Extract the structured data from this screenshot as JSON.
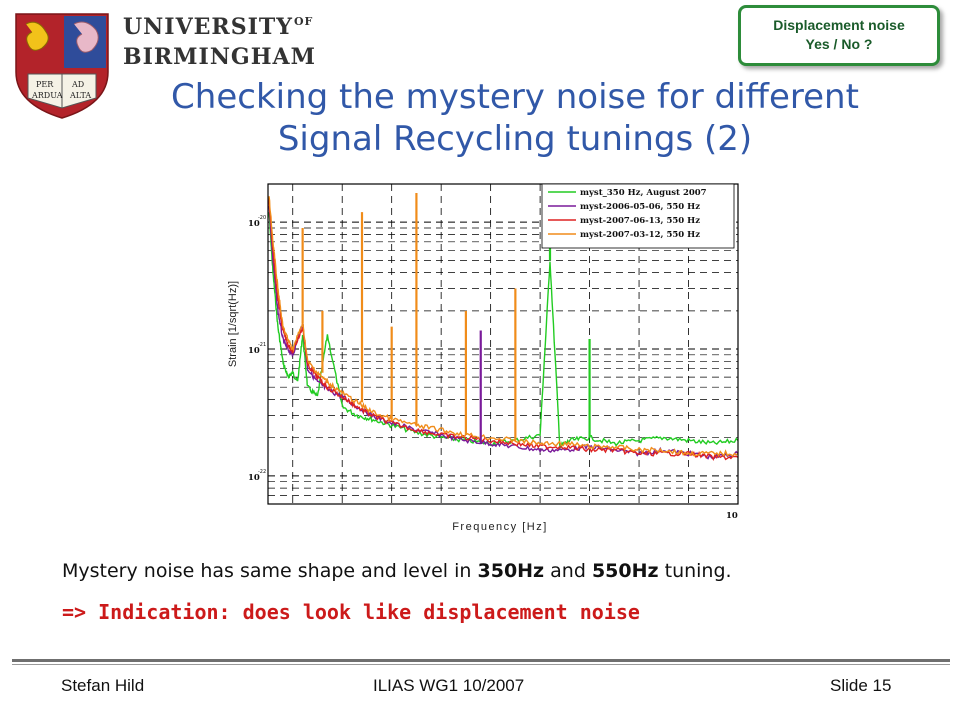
{
  "header": {
    "university_line1": "UNIVERSITY",
    "university_of": "OF",
    "university_line2": "BIRMINGHAM",
    "logo_text": [
      "PER",
      "AD",
      "ARDUA",
      "ALTA"
    ]
  },
  "badge": {
    "line1": "Displacement noise",
    "line2": "Yes / No ?"
  },
  "title": {
    "line1": "Checking the mystery noise for different",
    "line2": "Signal Recycling tunings (2)"
  },
  "body": {
    "statement_pre": "Mystery noise has same shape and level in ",
    "statement_b1": "350Hz",
    "statement_mid": " and ",
    "statement_b2": "550Hz",
    "statement_post": " tuning.",
    "indication": "=> Indication: does look like displacement noise"
  },
  "footer": {
    "left": "Stefan Hild",
    "center": "ILIAS WG1 10/2007",
    "right": "Slide 15"
  },
  "colors": {
    "title": "#3158a8",
    "indication": "#cc1a1a",
    "badge_border": "#2d8c3a"
  },
  "chart_data": {
    "type": "line",
    "title": "",
    "xlabel": "Frequency [Hz]",
    "ylabel": "Strain [1/sqrt(Hz)]",
    "x_scale": "linear",
    "y_scale": "log",
    "xlim": [
      50,
      1000
    ],
    "ylim": [
      6e-23,
      2e-20
    ],
    "grid": true,
    "grid_style": "dashed",
    "legend_position": "top-right",
    "tick_labels": {
      "y": [
        {
          "base": "10",
          "exp": "-20"
        },
        {
          "base": "10",
          "exp": "-21"
        },
        {
          "base": "10",
          "exp": "-22"
        }
      ],
      "x": [
        {
          "base": "10",
          "exp": ""
        }
      ]
    },
    "series": [
      {
        "name": "myst_350 Hz, August 2007",
        "color": "#22cc22",
        "points": [
          [
            52,
            1.2e-20
          ],
          [
            60,
            4e-21
          ],
          [
            70,
            1.5e-21
          ],
          [
            80,
            8e-22
          ],
          [
            90,
            6e-22
          ],
          [
            100,
            6.5e-22
          ],
          [
            110,
            5.5e-22
          ],
          [
            120,
            1.3e-21
          ],
          [
            130,
            5e-22
          ],
          [
            150,
            4.2e-22
          ],
          [
            170,
            1.3e-21
          ],
          [
            200,
            3.5e-22
          ],
          [
            230,
            3e-22
          ],
          [
            260,
            2.8e-22
          ],
          [
            300,
            2.5e-22
          ],
          [
            350,
            2.2e-22
          ],
          [
            400,
            2e-22
          ],
          [
            450,
            1.9e-22
          ],
          [
            500,
            1.8e-22
          ],
          [
            550,
            1.9e-22
          ],
          [
            600,
            2.1e-22
          ],
          [
            620,
            5e-21
          ],
          [
            640,
            1.7e-22
          ],
          [
            660,
            1.9e-22
          ],
          [
            700,
            2e-22
          ],
          [
            750,
            1.8e-22
          ],
          [
            800,
            1.9e-22
          ],
          [
            850,
            2e-22
          ],
          [
            900,
            1.9e-22
          ],
          [
            950,
            1.8e-22
          ],
          [
            1000,
            1.9e-22
          ]
        ]
      },
      {
        "name": "myst-2006-05-06, 550 Hz",
        "color": "#7a1a9a",
        "points": [
          [
            52,
            1.4e-20
          ],
          [
            60,
            5e-21
          ],
          [
            70,
            2e-21
          ],
          [
            80,
            1.2e-21
          ],
          [
            90,
            1e-21
          ],
          [
            100,
            9e-22
          ],
          [
            120,
            1.6e-21
          ],
          [
            130,
            7e-22
          ],
          [
            150,
            5.5e-22
          ],
          [
            170,
            4.8e-22
          ],
          [
            200,
            4.2e-22
          ],
          [
            230,
            3.5e-22
          ],
          [
            260,
            3e-22
          ],
          [
            300,
            2.6e-22
          ],
          [
            350,
            2.3e-22
          ],
          [
            400,
            2.1e-22
          ],
          [
            450,
            1.9e-22
          ],
          [
            500,
            1.8e-22
          ],
          [
            550,
            1.7e-22
          ],
          [
            600,
            1.6e-22
          ],
          [
            650,
            1.6e-22
          ],
          [
            700,
            1.7e-22
          ],
          [
            750,
            1.6e-22
          ],
          [
            800,
            1.5e-22
          ],
          [
            850,
            1.6e-22
          ],
          [
            900,
            1.5e-22
          ],
          [
            950,
            1.4e-22
          ],
          [
            1000,
            1.5e-22
          ]
        ]
      },
      {
        "name": "myst-2007-06-13, 550 Hz",
        "color": "#dd2222",
        "points": [
          [
            52,
            1.5e-20
          ],
          [
            60,
            6e-21
          ],
          [
            70,
            2.5e-21
          ],
          [
            80,
            1.4e-21
          ],
          [
            90,
            1.1e-21
          ],
          [
            100,
            9.5e-22
          ],
          [
            120,
            1.5e-21
          ],
          [
            130,
            7.5e-22
          ],
          [
            150,
            6e-22
          ],
          [
            170,
            5e-22
          ],
          [
            200,
            4.2e-22
          ],
          [
            230,
            3.5e-22
          ],
          [
            260,
            3e-22
          ],
          [
            300,
            2.6e-22
          ],
          [
            350,
            2.3e-22
          ],
          [
            400,
            2.1e-22
          ],
          [
            450,
            2e-22
          ],
          [
            500,
            1.9e-22
          ],
          [
            550,
            1.8e-22
          ],
          [
            600,
            1.7e-22
          ],
          [
            650,
            1.7e-22
          ],
          [
            700,
            1.6e-22
          ],
          [
            750,
            1.6e-22
          ],
          [
            800,
            1.5e-22
          ],
          [
            850,
            1.5e-22
          ],
          [
            900,
            1.5e-22
          ],
          [
            950,
            1.4e-22
          ],
          [
            1000,
            1.4e-22
          ]
        ]
      },
      {
        "name": "myst-2007-03-12, 550 Hz",
        "color": "#f08c1a",
        "points": [
          [
            52,
            1.6e-20
          ],
          [
            60,
            7e-21
          ],
          [
            70,
            3e-21
          ],
          [
            80,
            1.5e-21
          ],
          [
            90,
            1.2e-21
          ],
          [
            100,
            1e-21
          ],
          [
            120,
            1.6e-21
          ],
          [
            130,
            8e-22
          ],
          [
            150,
            6.5e-22
          ],
          [
            170,
            5.5e-22
          ],
          [
            200,
            4.5e-22
          ],
          [
            230,
            3.8e-22
          ],
          [
            260,
            3.2e-22
          ],
          [
            300,
            2.8e-22
          ],
          [
            350,
            2.5e-22
          ],
          [
            400,
            2.3e-22
          ],
          [
            450,
            2.1e-22
          ],
          [
            500,
            2e-22
          ],
          [
            550,
            1.9e-22
          ],
          [
            600,
            1.8e-22
          ],
          [
            650,
            1.8e-22
          ],
          [
            700,
            1.7e-22
          ],
          [
            750,
            1.7e-22
          ],
          [
            800,
            1.6e-22
          ],
          [
            850,
            1.6e-22
          ],
          [
            900,
            1.5e-22
          ],
          [
            950,
            1.5e-22
          ],
          [
            1000,
            1.5e-22
          ]
        ]
      }
    ],
    "peaks": [
      {
        "x": 120,
        "y": 9e-21,
        "series": 3
      },
      {
        "x": 160,
        "y": 2e-21,
        "series": 3
      },
      {
        "x": 240,
        "y": 1.2e-20,
        "series": 3
      },
      {
        "x": 300,
        "y": 1.5e-21,
        "series": 3
      },
      {
        "x": 350,
        "y": 1.7e-20,
        "series": 3
      },
      {
        "x": 450,
        "y": 2e-21,
        "series": 3
      },
      {
        "x": 550,
        "y": 3e-21,
        "series": 3
      },
      {
        "x": 480,
        "y": 1.4e-21,
        "series": 1
      },
      {
        "x": 620,
        "y": 1.6e-20,
        "series": 0
      },
      {
        "x": 700,
        "y": 1.2e-21,
        "series": 0
      }
    ]
  }
}
